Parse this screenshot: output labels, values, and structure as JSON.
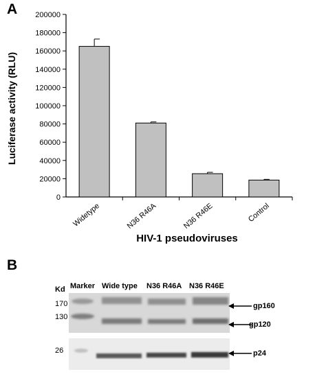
{
  "panels": {
    "a": "A",
    "b": "B"
  },
  "chart_data": {
    "type": "bar",
    "categories": [
      "Widetype",
      "N36 R46A",
      "N36 R46E",
      "Control"
    ],
    "values": [
      165000,
      81000,
      25500,
      18500
    ],
    "errors": [
      8000,
      1200,
      1500,
      800
    ],
    "xlabel": "HIV-1 pseudoviruses",
    "ylabel": "Luciferase activity (RLU)",
    "ylim": [
      0,
      200000
    ],
    "yticks": [
      "0",
      "20000",
      "40000",
      "60000",
      "80000",
      "100000",
      "120000",
      "140000",
      "160000",
      "180000",
      "200000"
    ],
    "bar_color": "#c0c0c0",
    "grid": false
  },
  "blot": {
    "kd_label": "Kd",
    "lanes": [
      "Marker",
      "Wide type",
      "N36  R46A",
      "N36 R46E"
    ],
    "markers": [
      "170",
      "130",
      "26"
    ],
    "bands": [
      "gp160",
      "gp120",
      "p24"
    ]
  }
}
